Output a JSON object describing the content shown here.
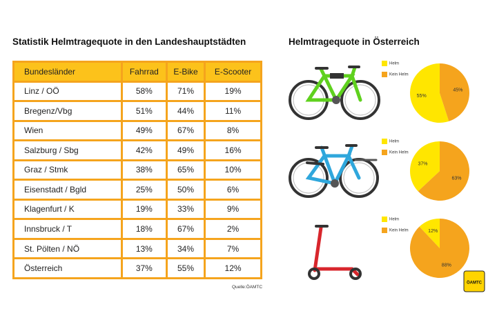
{
  "table_title": "Statistik Helmtragequote in den Landeshauptstädten",
  "table": {
    "header": [
      "Bundesländer",
      "Fahrrad",
      "E-Bike",
      "E-Scooter"
    ],
    "rows": [
      [
        "Linz / OÖ",
        "58%",
        "71%",
        "19%"
      ],
      [
        "Bregenz/Vbg",
        "51%",
        "44%",
        "11%"
      ],
      [
        "Wien",
        "49%",
        "67%",
        "8%"
      ],
      [
        "Salzburg / Sbg",
        "42%",
        "49%",
        "16%"
      ],
      [
        "Graz / Stmk",
        "38%",
        "65%",
        "10%"
      ],
      [
        "Eisenstadt / Bgld",
        "25%",
        "50%",
        "6%"
      ],
      [
        "Klagenfurt / K",
        "19%",
        "33%",
        "9%"
      ],
      [
        "Innsbruck / T",
        "18%",
        "67%",
        "2%"
      ],
      [
        "St. Pölten / NÖ",
        "13%",
        "34%",
        "7%"
      ],
      [
        "Österreich",
        "37%",
        "55%",
        "12%"
      ]
    ]
  },
  "source": "Quelle:ÖAMTC",
  "charts_title": "Helmtragequote in Österreich",
  "logo": "ÖAMTC",
  "chart_data": [
    {
      "type": "pie",
      "categories": [
        "Helm",
        "Kein Helm"
      ],
      "values": [
        55,
        45
      ],
      "value_labels": [
        "55%",
        "45%"
      ],
      "colors": [
        "#ffe600",
        "#f5a41d"
      ]
    },
    {
      "type": "pie",
      "categories": [
        "Helm",
        "Kein Helm"
      ],
      "values": [
        37,
        63
      ],
      "value_labels": [
        "37%",
        "63%"
      ],
      "colors": [
        "#ffe600",
        "#f5a41d"
      ]
    },
    {
      "type": "pie",
      "categories": [
        "Helm",
        "Kein Helm"
      ],
      "values": [
        12,
        88
      ],
      "value_labels": [
        "12%",
        "88%"
      ],
      "colors": [
        "#ffe600",
        "#f5a41d"
      ]
    }
  ]
}
